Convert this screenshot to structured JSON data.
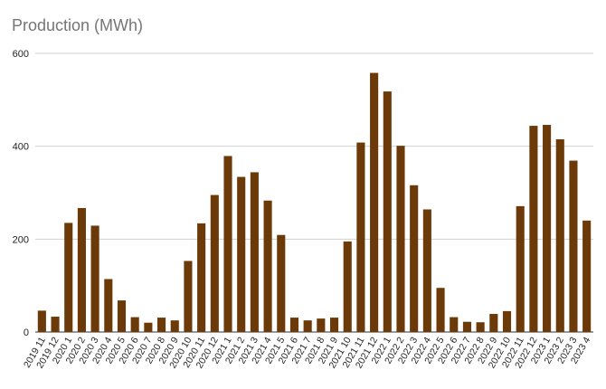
{
  "chart_data": {
    "type": "bar",
    "title": "Production (MWh)",
    "xlabel": "",
    "ylabel": "",
    "ylim": [
      0,
      600
    ],
    "yticks": [
      0,
      200,
      400,
      600
    ],
    "grid": true,
    "bar_color": "#6b3a08",
    "categories": [
      "2019 11",
      "2019 12",
      "2020 1",
      "2020 2",
      "2020 3",
      "2020 4",
      "2020 5",
      "2020 6",
      "2020 7",
      "2020 8",
      "2020 9",
      "2020 10",
      "2020 11",
      "2020 12",
      "2021 1",
      "2021 2",
      "2021 3",
      "2021 4",
      "2021 5",
      "2021 6",
      "2021 7",
      "2021 8",
      "2021 9",
      "2021 10",
      "2021 11",
      "2021 12",
      "2022 1",
      "2022 2",
      "2022 3",
      "2022 4",
      "2022 5",
      "2022 6",
      "2022 7",
      "2022 8",
      "2022 9",
      "2022 10",
      "2022 11",
      "2022 12",
      "2023 1",
      "2023 2",
      "2023 3",
      "2023 4"
    ],
    "values": [
      46,
      33,
      235,
      267,
      229,
      114,
      68,
      32,
      20,
      31,
      25,
      153,
      234,
      295,
      379,
      334,
      344,
      283,
      209,
      31,
      25,
      29,
      31,
      195,
      408,
      558,
      518,
      401,
      316,
      264,
      95,
      32,
      22,
      21,
      39,
      45,
      271,
      444,
      446,
      415,
      369,
      240
    ]
  }
}
